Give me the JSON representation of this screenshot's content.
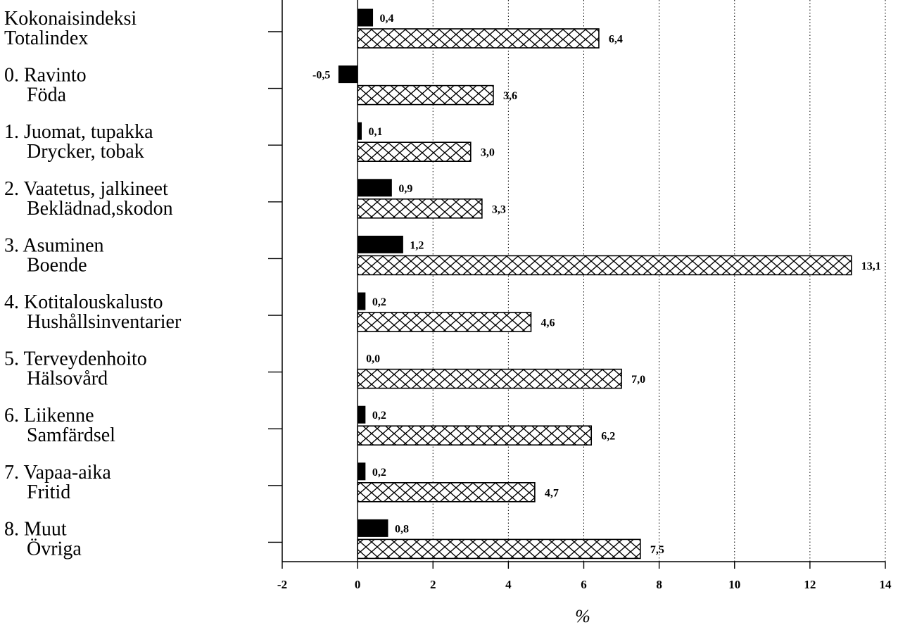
{
  "chart_data": {
    "type": "bar",
    "orientation": "horizontal",
    "categories": [
      [
        "Kokonaisindeksi",
        "Totalindex"
      ],
      [
        "0. Ravinto",
        "Föda"
      ],
      [
        "1. Juomat, tupakka",
        "Drycker, tobak"
      ],
      [
        "2. Vaatetus, jalkineet",
        "Beklädnad,skodon"
      ],
      [
        "3. Asuminen",
        "Boende"
      ],
      [
        "4. Kotitalouskalusto",
        "Hushållsinventarier"
      ],
      [
        "5. Terveydenhoito",
        "Hälsovård"
      ],
      [
        "6. Liikenne",
        "Samfärdsel"
      ],
      [
        "7. Vapaa-aika",
        "Fritid"
      ],
      [
        "8. Muut",
        "Övriga"
      ]
    ],
    "series": [
      {
        "style": "solid",
        "color": "#000000",
        "values": [
          0.4,
          -0.5,
          0.1,
          0.9,
          1.2,
          0.2,
          0.0,
          0.2,
          0.2,
          0.8
        ],
        "labels": [
          "0,4",
          "-0,5",
          "0,1",
          "0,9",
          "1,2",
          "0,2",
          "0,0",
          "0,2",
          "0,2",
          "0,8"
        ]
      },
      {
        "style": "crosshatch",
        "color": "#000000",
        "values": [
          6.4,
          3.6,
          3.0,
          3.3,
          13.1,
          4.6,
          7.0,
          6.2,
          4.7,
          7.5
        ],
        "labels": [
          "6,4",
          "3,6",
          "3,0",
          "3,3",
          "13,1",
          "4,6",
          "7,0",
          "6,2",
          "4,7",
          "7,5"
        ]
      }
    ],
    "xlim": [
      -2,
      14
    ],
    "xticks": [
      -2,
      0,
      2,
      4,
      6,
      8,
      10,
      12,
      14
    ],
    "xtick_labels": [
      "-2",
      "0",
      "2",
      "4",
      "6",
      "8",
      "10",
      "12",
      "14"
    ],
    "xlabel": "%",
    "grid": "vertical dotted",
    "title": "",
    "legend": "none"
  }
}
